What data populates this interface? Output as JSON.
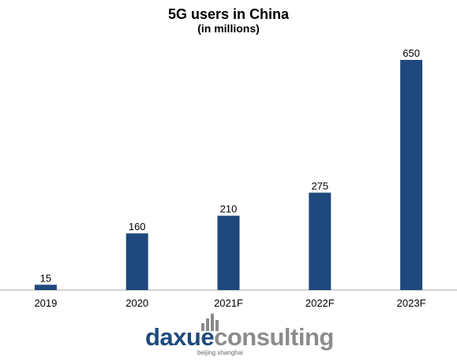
{
  "chart_data": {
    "type": "bar",
    "title": "5G users in China",
    "subtitle": "(in millions)",
    "categories": [
      "2019",
      "2020",
      "2021F",
      "2022F",
      "2023F"
    ],
    "values": [
      15,
      160,
      210,
      275,
      650
    ],
    "data_labels": [
      "15",
      "160",
      "210",
      "275",
      "650"
    ],
    "xlabel": "",
    "ylabel": "",
    "ylim": [
      0,
      670
    ],
    "grid": false,
    "legend": "none",
    "bar_color": "#1f497d"
  },
  "logo": {
    "word_part1": "daxue",
    "word_part2": "consulting",
    "tagline": "beijing shanghai",
    "color_primary": "#1e4a7c",
    "color_secondary": "#8c8c8c"
  }
}
